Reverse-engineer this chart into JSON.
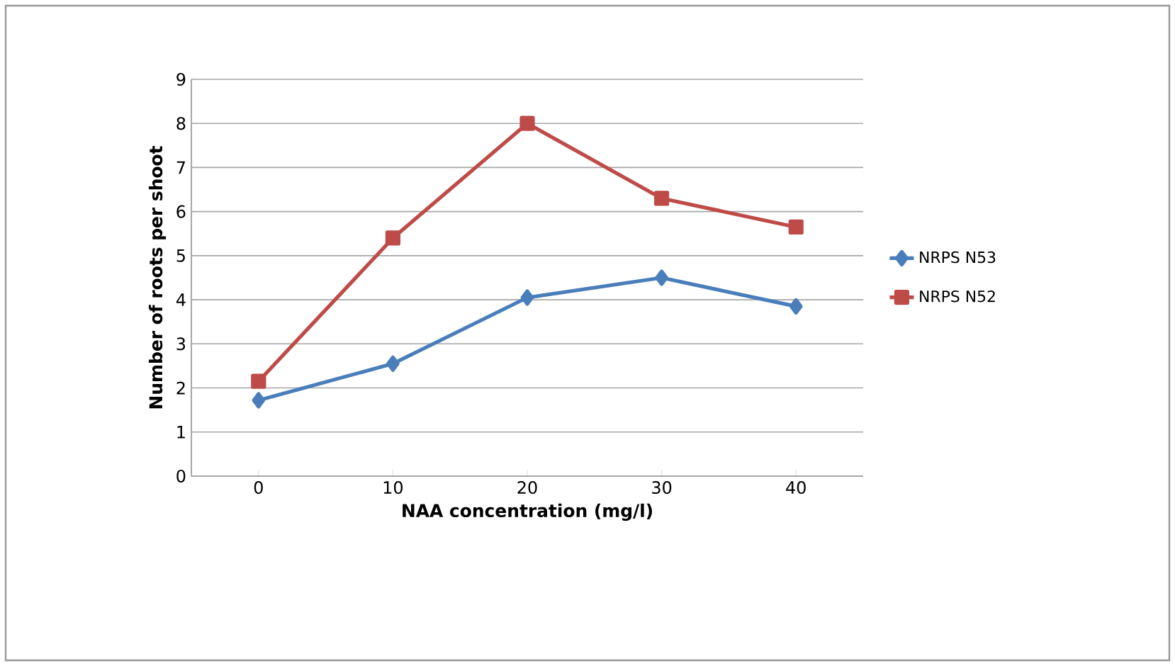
{
  "chart_data": {
    "type": "line",
    "xlabel": "NAA concentration (mg/l)",
    "ylabel": "Number of roots per shoot",
    "categories": [
      "0",
      "10",
      "20",
      "30",
      "40"
    ],
    "series": [
      {
        "name": "NRPS N53",
        "color": "#4a7ebb",
        "marker": "diamond",
        "values": [
          1.72,
          2.55,
          4.05,
          4.5,
          3.85
        ]
      },
      {
        "name": "NRPS N52",
        "color": "#be4b48",
        "marker": "square",
        "values": [
          2.15,
          5.4,
          8.0,
          6.3,
          5.65
        ]
      }
    ],
    "ylim": [
      0,
      9
    ],
    "yticks": [
      0,
      1,
      2,
      3,
      4,
      5,
      6,
      7,
      8,
      9
    ],
    "grid": "y",
    "legend": "right"
  }
}
